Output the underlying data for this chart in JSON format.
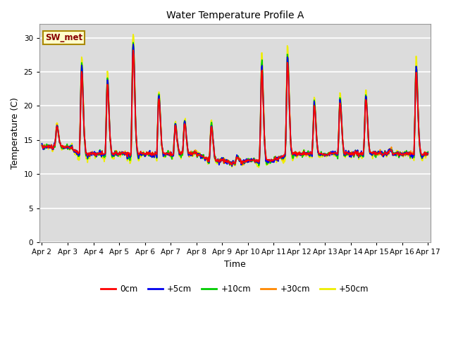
{
  "title": "Water Temperature Profile A",
  "xlabel": "Time",
  "ylabel": "Temperature (C)",
  "ylim": [
    0,
    32
  ],
  "yticks": [
    0,
    5,
    10,
    15,
    20,
    25,
    30
  ],
  "annotation": "SW_met",
  "background_color": "#dcdcdc",
  "legend_entries": [
    "0cm",
    "+5cm",
    "+10cm",
    "+30cm",
    "+50cm"
  ],
  "legend_colors": [
    "#ff0000",
    "#0000ee",
    "#00cc00",
    "#ff8800",
    "#eeee00"
  ],
  "x_labels": [
    "Apr 2",
    "Apr 3",
    "Apr 4",
    "Apr 5",
    "Apr 6",
    "Apr 7",
    "Apr 8",
    "Apr 9",
    "Apr 10",
    "Apr 11",
    "Apr 12",
    "Apr 13",
    "Apr 14",
    "Apr 15",
    "Apr 16",
    "Apr 17"
  ],
  "line_width": 1.3,
  "figsize": [
    6.4,
    4.8
  ],
  "dpi": 100
}
